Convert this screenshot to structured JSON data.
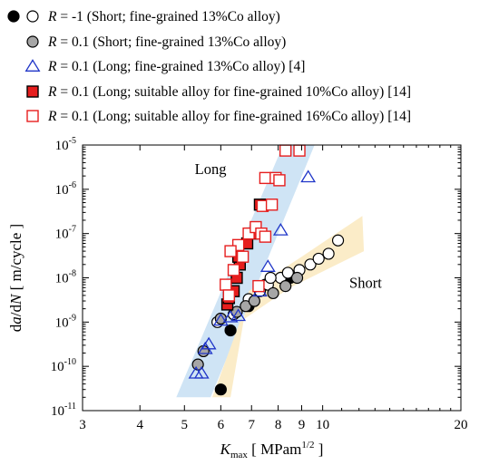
{
  "chart_data": {
    "type": "scatter",
    "xscale": "log",
    "yscale": "log",
    "xlim": [
      3,
      20
    ],
    "ylim": [
      1e-11,
      1e-05
    ],
    "x_ticks": [
      3,
      4,
      5,
      6,
      7,
      8,
      9,
      10,
      20
    ],
    "y_ticks": [
      {
        "value": 1e-11,
        "base": "10",
        "exp": "-11"
      },
      {
        "value": 1e-10,
        "base": "10",
        "exp": "-10"
      },
      {
        "value": 1e-09,
        "base": "10",
        "exp": "-9"
      },
      {
        "value": 1e-08,
        "base": "10",
        "exp": "-8"
      },
      {
        "value": 1e-07,
        "base": "10",
        "exp": "-7"
      },
      {
        "value": 1e-06,
        "base": "10",
        "exp": "-6"
      },
      {
        "value": 1e-05,
        "base": "10",
        "exp": "-5"
      }
    ],
    "xlabel": {
      "main": "K",
      "sub": "max",
      "units_pre": "[ MPam",
      "units_sup": "1/2",
      "units_post": " ]"
    },
    "ylabel": {
      "pre": "d",
      "italic": "a",
      "post": "/d",
      "italic2": "N",
      "units": "  [ m/cycle ]"
    },
    "region_labels": [
      {
        "text": "Long",
        "x": 5.7,
        "y": 2.2e-06
      },
      {
        "text": "Short",
        "x": 12.4,
        "y": 6e-09
      }
    ],
    "bands": [
      {
        "name": "Long",
        "color": "#cfe4f5",
        "polygon": [
          [
            4.8,
            2e-11
          ],
          [
            5.7,
            2e-11
          ],
          [
            9.6,
            1e-05
          ],
          [
            8.2,
            1e-05
          ]
        ]
      },
      {
        "name": "Short",
        "color": "#fbecc8",
        "polygon": [
          [
            5.75,
            2e-11
          ],
          [
            6.3,
            2e-11
          ],
          [
            6.9,
            5e-09
          ],
          [
            9.0,
            3e-08
          ],
          [
            12.2,
            2.5e-07
          ],
          [
            12.3,
            4e-08
          ],
          [
            8.5,
            6e-09
          ],
          [
            6.6,
            1e-09
          ]
        ]
      }
    ],
    "series": [
      {
        "name": "= -1 (Short; fine-grained 13%Co alloy)",
        "legend_pair": "black",
        "marker": "circle",
        "fill": "#000000",
        "stroke": "#000000",
        "points": [
          [
            6.0,
            3e-11
          ],
          [
            6.3,
            6.5e-10
          ],
          [
            6.9,
            2.3e-09
          ],
          [
            7.5,
            7e-09
          ],
          [
            8.5,
            1e-08
          ]
        ]
      },
      {
        "name": "= -1 (Short; fine-grained 13%Co alloy)",
        "legend_pair": "white",
        "marker": "circle",
        "fill": "#ffffff",
        "stroke": "#000000",
        "points": [
          [
            5.9,
            1e-09
          ],
          [
            6.4,
            1.5e-09
          ],
          [
            6.9,
            3.3e-09
          ],
          [
            7.3,
            5e-09
          ],
          [
            7.6,
            7e-09
          ],
          [
            8.1,
            1e-08
          ],
          [
            8.4,
            1.3e-08
          ],
          [
            8.9,
            1.5e-08
          ],
          [
            9.4,
            2e-08
          ],
          [
            9.8,
            2.7e-08
          ],
          [
            10.3,
            3.5e-08
          ],
          [
            10.8,
            7e-08
          ],
          [
            7.7,
            1e-08
          ]
        ]
      },
      {
        "name": "= 0.1 (Short; fine-grained 13%Co alloy)",
        "marker": "circle",
        "fill": "#a6a6a6",
        "stroke": "#000000",
        "points": [
          [
            5.35,
            1.1e-10
          ],
          [
            5.5,
            2.2e-10
          ],
          [
            6.0,
            1.2e-09
          ],
          [
            6.5,
            1.7e-09
          ],
          [
            6.8,
            2.3e-09
          ],
          [
            7.1,
            3e-09
          ],
          [
            7.8,
            4.5e-09
          ],
          [
            8.3,
            6.5e-09
          ],
          [
            8.8,
            1e-08
          ]
        ]
      },
      {
        "name": "= 0.1 (Long; fine-grained 13%Co alloy) [4]",
        "marker": "triangle",
        "fill": "none",
        "stroke": "#1f35c8",
        "points": [
          [
            5.3,
            7e-11
          ],
          [
            5.45,
            7e-11
          ],
          [
            5.55,
            2.5e-10
          ],
          [
            5.65,
            3.2e-10
          ],
          [
            6.0,
            1.1e-09
          ],
          [
            6.3,
            1.3e-09
          ],
          [
            6.55,
            1.4e-09
          ],
          [
            7.3,
            5e-09
          ],
          [
            7.6,
            1.8e-08
          ],
          [
            8.1,
            1.2e-07
          ],
          [
            9.3,
            1.9e-06
          ]
        ]
      },
      {
        "name": "= 0.1 (Long; suitable alloy for fine-grained 10%Co alloy) [14]",
        "marker": "square",
        "fill": "#e61e1e",
        "stroke": "#000000",
        "points": [
          [
            6.2,
            2.5e-09
          ],
          [
            6.25,
            3.5e-09
          ],
          [
            6.4,
            5e-09
          ],
          [
            6.5,
            1e-08
          ],
          [
            6.6,
            2e-08
          ],
          [
            6.55,
            3e-08
          ],
          [
            6.85,
            6e-08
          ],
          [
            7.0,
            1e-07
          ],
          [
            7.3,
            4.5e-07
          ]
        ]
      },
      {
        "name": "= 0.1 (Long; suitable alloy for fine-grained 16%Co alloy) [14]",
        "marker": "square",
        "fill": "#ffffff",
        "stroke": "#e61e1e",
        "points": [
          [
            6.15,
            7e-09
          ],
          [
            6.25,
            4e-09
          ],
          [
            6.55,
            5.5e-08
          ],
          [
            6.7,
            3e-08
          ],
          [
            6.9,
            1e-07
          ],
          [
            7.15,
            1.4e-07
          ],
          [
            7.35,
            1e-07
          ],
          [
            7.5,
            8.5e-08
          ],
          [
            7.4,
            4.2e-07
          ],
          [
            7.75,
            4.5e-07
          ],
          [
            7.5,
            1.8e-06
          ],
          [
            7.9,
            1.8e-06
          ],
          [
            8.05,
            1.6e-06
          ],
          [
            8.3,
            7.5e-06
          ],
          [
            8.9,
            7.5e-06
          ],
          [
            6.4,
            1.5e-08
          ],
          [
            6.3,
            4e-08
          ],
          [
            7.25,
            6.5e-09
          ]
        ]
      }
    ]
  }
}
